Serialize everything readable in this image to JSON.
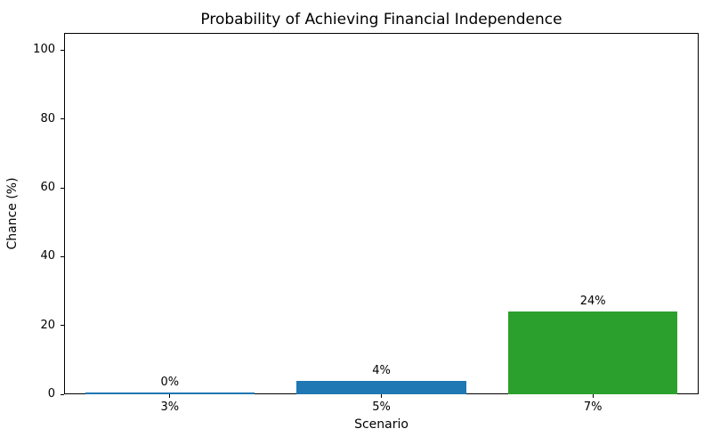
{
  "chart_data": {
    "type": "bar",
    "title": "Probability of Achieving Financial Independence",
    "xlabel": "Scenario",
    "ylabel": "Chance (%)",
    "categories": [
      "3%",
      "5%",
      "7%"
    ],
    "values": [
      0,
      4,
      24
    ],
    "bar_labels": [
      "0%",
      "4%",
      "24%"
    ],
    "bar_colors": [
      "#1f77b4",
      "#1f77b4",
      "#2ca02c"
    ],
    "yticks": [
      0,
      20,
      40,
      60,
      80,
      100
    ],
    "ylim": [
      0,
      105
    ],
    "grid": false,
    "legend_position": "none"
  },
  "colors": {
    "background": "#ffffff",
    "axis": "#000000",
    "text": "#000000"
  }
}
